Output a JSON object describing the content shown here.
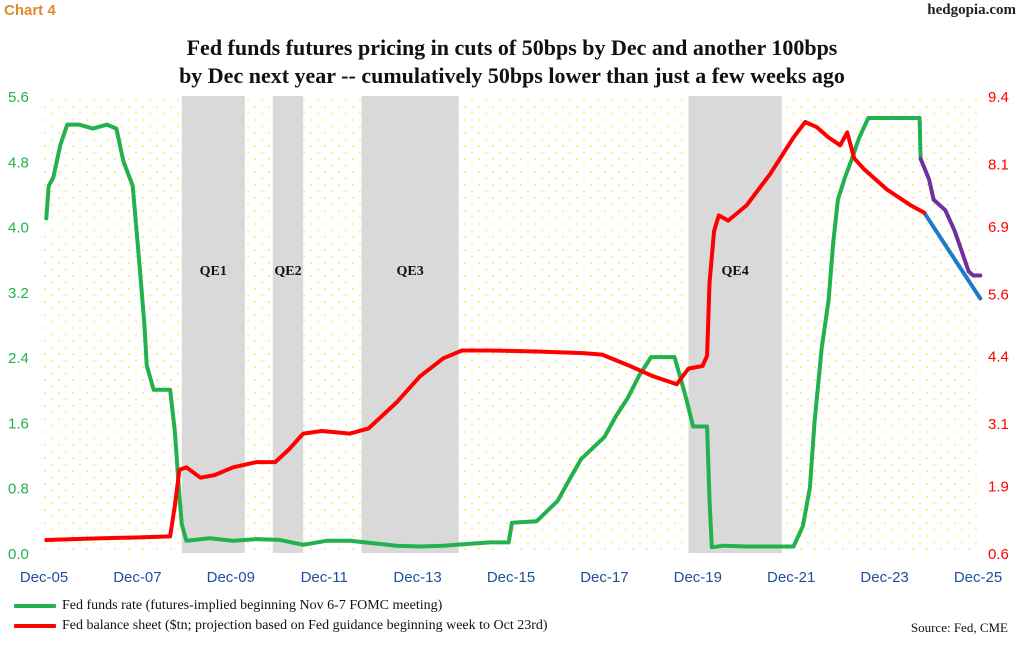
{
  "header": {
    "chart_number": "Chart 4",
    "brand": "hedgopia.com",
    "title_line1": "Fed funds futures pricing in cuts of 50bps by Dec and another 100bps",
    "title_line2": "by Dec next year -- cumulatively 50bps lower than just a few weeks ago"
  },
  "footer": {
    "source": "Source: Fed, CME"
  },
  "colors": {
    "green": "#22b14c",
    "red": "#ff0000",
    "purple": "#7030a0",
    "blue": "#1f7ac8",
    "shade": "#d9d9d9",
    "dots": "#f2e64a"
  },
  "chart_data": {
    "type": "line",
    "x_ticks": [
      "Dec-05",
      "Dec-07",
      "Dec-09",
      "Dec-11",
      "Dec-13",
      "Dec-15",
      "Dec-17",
      "Dec-19",
      "Dec-21",
      "Dec-23",
      "Dec-25"
    ],
    "x_range": [
      2005.95,
      2025.95
    ],
    "left_axis": {
      "ticks": [
        "0.0",
        "0.8",
        "1.6",
        "2.4",
        "3.2",
        "4.0",
        "4.8",
        "5.6"
      ],
      "ylim": [
        0,
        5.6
      ]
    },
    "right_axis": {
      "ticks": [
        "0.6",
        "1.9",
        "3.1",
        "4.4",
        "5.6",
        "6.9",
        "8.1",
        "9.4"
      ],
      "ylim": [
        0.6,
        9.4
      ]
    },
    "shaded_periods": [
      {
        "label": "QE1",
        "start": 2008.9,
        "end": 2010.25
      },
      {
        "label": "QE2",
        "start": 2010.85,
        "end": 2011.5
      },
      {
        "label": "QE3",
        "start": 2012.75,
        "end": 2014.83
      },
      {
        "label": "QE4",
        "start": 2019.75,
        "end": 2021.75
      }
    ],
    "series": [
      {
        "name": "Fed funds rate (futures-implied beginning Nov 6-7 FOMC meeting)",
        "axis": "left",
        "color": "#22b14c",
        "points": [
          [
            2006.0,
            4.1
          ],
          [
            2006.05,
            4.5
          ],
          [
            2006.15,
            4.6
          ],
          [
            2006.3,
            5.0
          ],
          [
            2006.45,
            5.25
          ],
          [
            2006.7,
            5.25
          ],
          [
            2007.0,
            5.2
          ],
          [
            2007.3,
            5.25
          ],
          [
            2007.5,
            5.2
          ],
          [
            2007.65,
            4.8
          ],
          [
            2007.85,
            4.5
          ],
          [
            2008.0,
            3.5
          ],
          [
            2008.1,
            2.8
          ],
          [
            2008.15,
            2.3
          ],
          [
            2008.3,
            2.0
          ],
          [
            2008.5,
            2.0
          ],
          [
            2008.65,
            2.0
          ],
          [
            2008.75,
            1.5
          ],
          [
            2008.85,
            0.7
          ],
          [
            2008.9,
            0.35
          ],
          [
            2009.0,
            0.15
          ],
          [
            2009.5,
            0.18
          ],
          [
            2010.0,
            0.15
          ],
          [
            2010.5,
            0.17
          ],
          [
            2011.0,
            0.16
          ],
          [
            2011.5,
            0.1
          ],
          [
            2012.0,
            0.15
          ],
          [
            2012.5,
            0.15
          ],
          [
            2013.0,
            0.12
          ],
          [
            2013.5,
            0.09
          ],
          [
            2014.0,
            0.08
          ],
          [
            2014.5,
            0.09
          ],
          [
            2015.0,
            0.11
          ],
          [
            2015.5,
            0.13
          ],
          [
            2015.9,
            0.13
          ],
          [
            2015.97,
            0.37
          ],
          [
            2016.5,
            0.39
          ],
          [
            2016.95,
            0.64
          ],
          [
            2017.2,
            0.9
          ],
          [
            2017.45,
            1.15
          ],
          [
            2017.95,
            1.42
          ],
          [
            2018.2,
            1.68
          ],
          [
            2018.45,
            1.9
          ],
          [
            2018.7,
            2.18
          ],
          [
            2018.95,
            2.4
          ],
          [
            2019.45,
            2.4
          ],
          [
            2019.6,
            2.1
          ],
          [
            2019.72,
            1.85
          ],
          [
            2019.85,
            1.55
          ],
          [
            2020.15,
            1.55
          ],
          [
            2020.2,
            0.65
          ],
          [
            2020.25,
            0.07
          ],
          [
            2020.5,
            0.09
          ],
          [
            2021.0,
            0.08
          ],
          [
            2021.5,
            0.08
          ],
          [
            2022.0,
            0.08
          ],
          [
            2022.2,
            0.33
          ],
          [
            2022.35,
            0.8
          ],
          [
            2022.45,
            1.6
          ],
          [
            2022.6,
            2.5
          ],
          [
            2022.75,
            3.1
          ],
          [
            2022.85,
            3.8
          ],
          [
            2022.95,
            4.33
          ],
          [
            2023.1,
            4.6
          ],
          [
            2023.25,
            4.83
          ],
          [
            2023.4,
            5.08
          ],
          [
            2023.6,
            5.33
          ],
          [
            2024.1,
            5.33
          ],
          [
            2024.7,
            5.33
          ],
          [
            2024.72,
            4.83
          ]
        ]
      },
      {
        "name": "Fed funds futures (purple)",
        "axis": "left",
        "color": "#7030a0",
        "points": [
          [
            2024.72,
            4.83
          ],
          [
            2024.9,
            4.58
          ],
          [
            2025.0,
            4.33
          ],
          [
            2025.25,
            4.2
          ],
          [
            2025.45,
            3.95
          ],
          [
            2025.6,
            3.7
          ],
          [
            2025.75,
            3.45
          ],
          [
            2025.85,
            3.4
          ],
          [
            2026.0,
            3.4
          ]
        ]
      },
      {
        "name": "Fed balance sheet (blue projection)",
        "axis": "right",
        "color": "#1f7ac8",
        "points": [
          [
            2024.8,
            7.15
          ],
          [
            2026.0,
            5.5
          ]
        ]
      },
      {
        "name": "Fed balance sheet ($tn; projection based on Fed guidance beginning week to Oct 23rd)",
        "axis": "right",
        "color": "#ff0000",
        "points": [
          [
            2006.0,
            0.85
          ],
          [
            2007.0,
            0.88
          ],
          [
            2008.0,
            0.9
          ],
          [
            2008.65,
            0.92
          ],
          [
            2008.75,
            1.5
          ],
          [
            2008.85,
            2.2
          ],
          [
            2009.0,
            2.25
          ],
          [
            2009.3,
            2.05
          ],
          [
            2009.6,
            2.1
          ],
          [
            2010.0,
            2.25
          ],
          [
            2010.5,
            2.35
          ],
          [
            2010.9,
            2.35
          ],
          [
            2011.2,
            2.6
          ],
          [
            2011.5,
            2.9
          ],
          [
            2011.9,
            2.95
          ],
          [
            2012.5,
            2.9
          ],
          [
            2012.9,
            3.0
          ],
          [
            2013.5,
            3.5
          ],
          [
            2014.0,
            4.0
          ],
          [
            2014.5,
            4.35
          ],
          [
            2014.9,
            4.5
          ],
          [
            2015.5,
            4.5
          ],
          [
            2016.5,
            4.48
          ],
          [
            2017.5,
            4.45
          ],
          [
            2017.9,
            4.42
          ],
          [
            2018.5,
            4.2
          ],
          [
            2019.0,
            4.0
          ],
          [
            2019.5,
            3.85
          ],
          [
            2019.75,
            4.15
          ],
          [
            2020.05,
            4.2
          ],
          [
            2020.15,
            4.4
          ],
          [
            2020.2,
            5.8
          ],
          [
            2020.3,
            6.8
          ],
          [
            2020.4,
            7.1
          ],
          [
            2020.6,
            7.0
          ],
          [
            2021.0,
            7.3
          ],
          [
            2021.5,
            7.9
          ],
          [
            2022.0,
            8.6
          ],
          [
            2022.25,
            8.9
          ],
          [
            2022.5,
            8.8
          ],
          [
            2022.75,
            8.6
          ],
          [
            2023.0,
            8.45
          ],
          [
            2023.15,
            8.7
          ],
          [
            2023.3,
            8.2
          ],
          [
            2023.5,
            8.0
          ],
          [
            2024.0,
            7.6
          ],
          [
            2024.5,
            7.3
          ],
          [
            2024.8,
            7.15
          ]
        ]
      }
    ],
    "legend": [
      "Fed funds rate (futures-implied beginning Nov 6-7 FOMC meeting)",
      "Fed balance sheet ($tn; projection based on Fed guidance beginning week to Oct 23rd)"
    ]
  }
}
